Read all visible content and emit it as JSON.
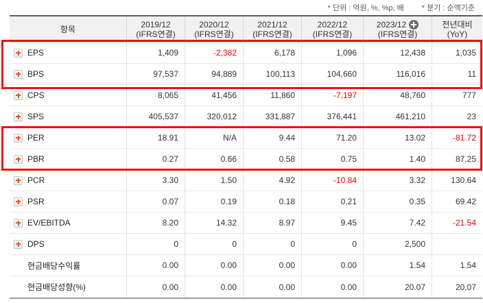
{
  "notes": {
    "unit": "* 단위 : 억원, %, %p, 배",
    "basis": "* 분기 : 순액기준"
  },
  "colors": {
    "highlight-red": "#ee1111",
    "negative-red": "#e60000",
    "expand-orange": "#f05014",
    "header-bg": "#f1f1f1",
    "text": "#333333"
  },
  "table": {
    "columns": [
      {
        "label": "항목"
      },
      {
        "line1": "2019/12",
        "line2": "(IFRS연결)"
      },
      {
        "line1": "2020/12",
        "line2": "(IFRS연결)"
      },
      {
        "line1": "2021/12",
        "line2": "(IFRS연결)"
      },
      {
        "line1": "2022/12",
        "line2": "(IFRS연결)"
      },
      {
        "line1": "2023/12",
        "line2": "(IFRS연결)",
        "add_icon": true
      },
      {
        "line1": "전년대비",
        "line2": "(YoY)"
      }
    ],
    "rows": [
      {
        "label": "EPS",
        "expandable": true,
        "values": [
          "1,409",
          "-2,382",
          "6,178",
          "1,096",
          "12,438",
          "1,035"
        ]
      },
      {
        "label": "BPS",
        "expandable": true,
        "values": [
          "97,537",
          "94,889",
          "100,113",
          "104,660",
          "116,016",
          "11"
        ]
      },
      {
        "label": "CPS",
        "expandable": true,
        "values": [
          "8,065",
          "41,456",
          "11,860",
          "-7,197",
          "48,760",
          "777"
        ]
      },
      {
        "label": "SPS",
        "expandable": true,
        "values": [
          "405,537",
          "320,012",
          "331,887",
          "376,441",
          "461,210",
          "23"
        ]
      },
      {
        "label": "PER",
        "expandable": true,
        "values": [
          "18.91",
          "N/A",
          "9.44",
          "71.20",
          "13.02",
          "-81.72"
        ]
      },
      {
        "label": "PBR",
        "expandable": true,
        "values": [
          "0.27",
          "0.66",
          "0.58",
          "0.75",
          "1.40",
          "87.25"
        ]
      },
      {
        "label": "PCR",
        "expandable": true,
        "values": [
          "3.30",
          "1.50",
          "4.92",
          "-10.84",
          "3.32",
          "130.64"
        ]
      },
      {
        "label": "PSR",
        "expandable": true,
        "values": [
          "0.07",
          "0.19",
          "0.18",
          "0.21",
          "0.35",
          "69.42"
        ]
      },
      {
        "label": "EV/EBITDA",
        "expandable": true,
        "values": [
          "8.20",
          "14.32",
          "8.97",
          "9.45",
          "7.42",
          "-21.54"
        ]
      },
      {
        "label": "DPS",
        "expandable": true,
        "values": [
          "0",
          "0",
          "0",
          "0",
          "2,500",
          ""
        ]
      },
      {
        "label": "현금배당수익률",
        "expandable": false,
        "values": [
          "0.00",
          "0.00",
          "0.00",
          "0.00",
          "1.54",
          "1.54"
        ]
      },
      {
        "label": "현금배당성향(%)",
        "expandable": false,
        "values": [
          "0.00",
          "0.00",
          "0.00",
          "0.00",
          "20.07",
          "20.07"
        ]
      }
    ]
  }
}
